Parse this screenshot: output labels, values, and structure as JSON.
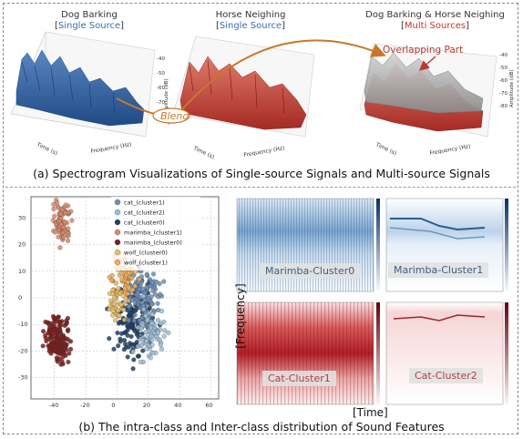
{
  "panel_a": {
    "plot1": {
      "title": "Dog Barking",
      "tag": "Single Source",
      "color": "#3c6db0"
    },
    "plot2": {
      "title": "Horse Neighing",
      "tag": "Single Source",
      "color": "#c0392b"
    },
    "plot3": {
      "title": "Dog Barking & Horse Neighing",
      "tag": "Multi Sources",
      "color": "#999999"
    },
    "blend_label": "Blend",
    "overlap_label": "Overlapping Part",
    "axis_time": "Time (s)",
    "axis_freq": "Frequency (Hz)",
    "axis_amp": "Amplitude (dB)",
    "amp_ticks": [
      "-40",
      "-50",
      "-60",
      "-70",
      "-80"
    ],
    "caption": "(a) Spectrogram Visualizations of Single-source Signals and Multi-source Signals"
  },
  "panel_b": {
    "legend": [
      {
        "label": "cat_(cluster1)",
        "color": "#6b8fb5"
      },
      {
        "label": "cat_(cluster2)",
        "color": "#9ec0d8"
      },
      {
        "label": "cat_(cluster0)",
        "color": "#1f3f66"
      },
      {
        "label": "marimba_(cluster1)",
        "color": "#d98a6c"
      },
      {
        "label": "marimba_(cluster0)",
        "color": "#7d1e1e"
      },
      {
        "label": "wolf_(cluster0)",
        "color": "#e8c06a"
      },
      {
        "label": "wolf_(cluster1)",
        "color": "#f4ad58"
      }
    ],
    "x_ticks": [
      "-40",
      "-20",
      "0",
      "20",
      "40",
      "60"
    ],
    "y_ticks": [
      "30",
      "20",
      "10",
      "0",
      "-10",
      "-20",
      "-30"
    ],
    "spec_labels": [
      "Marimba-Cluster0",
      "Marimba-Cluster1",
      "Cat-Cluster1",
      "Cat-Cluster2"
    ],
    "freq_label": "[Frequency]",
    "time_label": "[Time]",
    "caption": "(b) The intra-class and Inter-class distribution of Sound Features"
  }
}
